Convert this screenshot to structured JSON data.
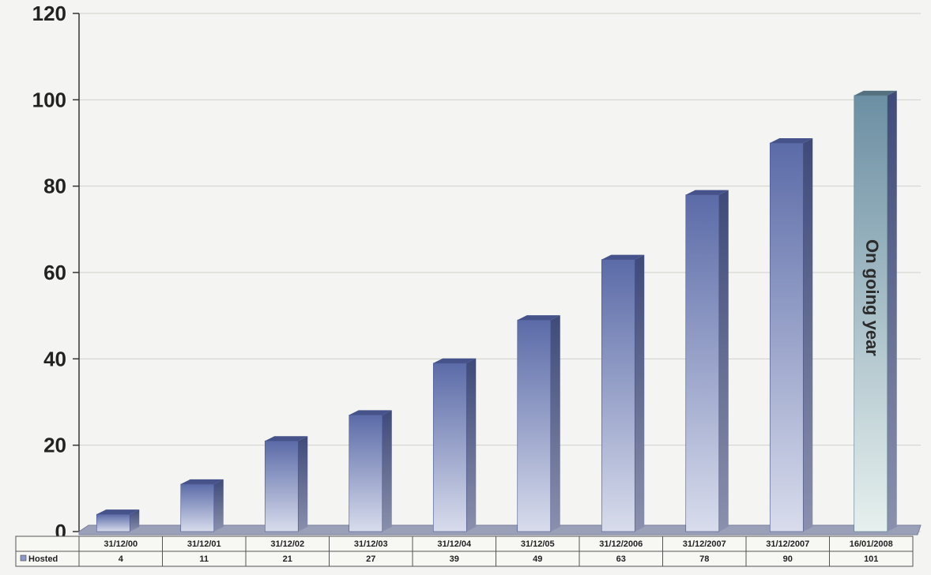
{
  "chart_data": {
    "type": "bar",
    "categories": [
      "31/12/00",
      "31/12/01",
      "31/12/02",
      "31/12/03",
      "31/12/04",
      "31/12/05",
      "31/12/2006",
      "31/12/2007",
      "31/12/2007",
      "16/01/2008"
    ],
    "series": [
      {
        "name": "Hosted",
        "values": [
          4,
          11,
          21,
          27,
          39,
          49,
          63,
          78,
          90,
          101
        ]
      }
    ],
    "ylim": [
      0,
      120
    ],
    "yticks": [
      0,
      20,
      40,
      60,
      80,
      100,
      120
    ],
    "grid": true,
    "data_table": true,
    "annotation": "On going year",
    "colors": {
      "bar_top": "#5b6ba8",
      "bar_bottom": "#d8dcec",
      "bar_side": "#3f4a7a",
      "highlight_top": "#6c8fa3",
      "highlight_bottom": "#e6f0ee",
      "floor": "#9aa0b8"
    }
  }
}
